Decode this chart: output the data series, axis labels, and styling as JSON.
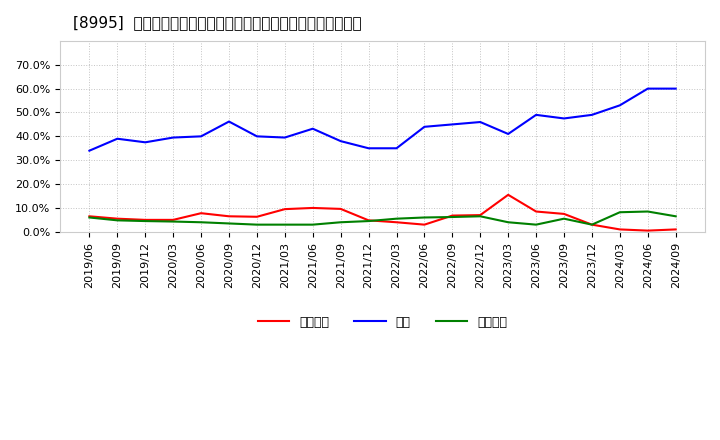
{
  "title": "[8995]  売上債権、在庫、買入債務の総資産に対する比率の推移",
  "x_labels": [
    "2019/06",
    "2019/09",
    "2019/12",
    "2020/03",
    "2020/06",
    "2020/09",
    "2020/12",
    "2021/03",
    "2021/06",
    "2021/09",
    "2021/12",
    "2022/03",
    "2022/06",
    "2022/09",
    "2022/12",
    "2023/03",
    "2023/06",
    "2023/09",
    "2023/12",
    "2024/03",
    "2024/06",
    "2024/09"
  ],
  "series": {
    "売上債権": [
      0.065,
      0.055,
      0.05,
      0.05,
      0.078,
      0.065,
      0.063,
      0.095,
      0.1,
      0.096,
      0.048,
      0.04,
      0.03,
      0.068,
      0.07,
      0.155,
      0.085,
      0.075,
      0.03,
      0.01,
      0.005,
      0.01
    ],
    "在庫": [
      0.34,
      0.39,
      0.375,
      0.395,
      0.4,
      0.462,
      0.4,
      0.395,
      0.432,
      0.38,
      0.35,
      0.35,
      0.44,
      0.45,
      0.46,
      0.41,
      0.49,
      0.475,
      0.49,
      0.53,
      0.6,
      0.6
    ],
    "買入債務": [
      0.06,
      0.048,
      0.045,
      0.043,
      0.04,
      0.035,
      0.03,
      0.03,
      0.03,
      0.04,
      0.045,
      0.055,
      0.06,
      0.062,
      0.065,
      0.04,
      0.03,
      0.055,
      0.03,
      0.082,
      0.085,
      0.065
    ]
  },
  "colors": {
    "売上債権": "#ff0000",
    "在庫": "#0000ff",
    "買入債務": "#008000"
  },
  "ylim": [
    0.0,
    0.8
  ],
  "yticks": [
    0.0,
    0.1,
    0.2,
    0.3,
    0.4,
    0.5,
    0.6,
    0.7
  ],
  "background_color": "#ffffff",
  "plot_bg_color": "#ffffff",
  "grid_color": "#aaaaaa",
  "title_fontsize": 11,
  "legend_fontsize": 9,
  "tick_fontsize": 8
}
